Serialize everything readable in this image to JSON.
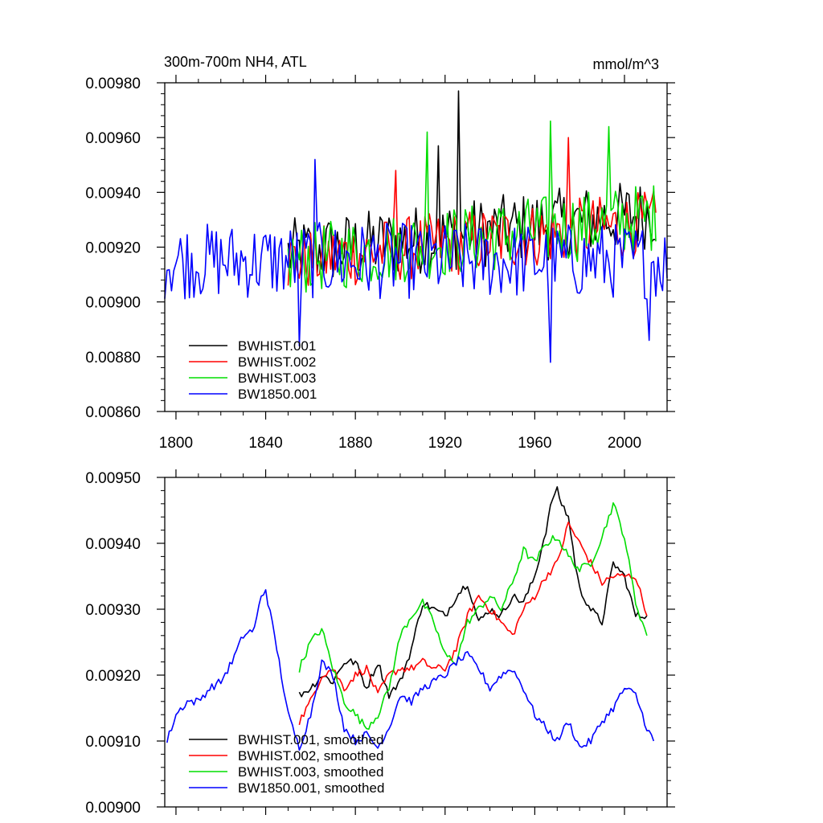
{
  "chart_data": [
    {
      "type": "line",
      "title_left": "300m-700m NH4, ATL",
      "title_right": "mmol/m^3",
      "xlabel": "",
      "ylabel": "",
      "xlim": [
        1795,
        2019
      ],
      "ylim": [
        0.0086,
        0.0098
      ],
      "xticks": [
        1800,
        1840,
        1880,
        1920,
        1960,
        2000
      ],
      "yticks": [
        0.0086,
        0.0088,
        0.009,
        0.0092,
        0.0094,
        0.0096,
        0.0098
      ],
      "ytick_labels": [
        "0.00860",
        "0.00880",
        "0.00900",
        "0.00920",
        "0.00940",
        "0.00960",
        "0.00980"
      ],
      "legend_position": "bottom-left",
      "series": [
        {
          "name": "BWHIST.001",
          "color": "#000000",
          "x_start": 1850,
          "x_end": 2014,
          "mean": 0.00925,
          "amp": 0.00013,
          "trend": 0.00015,
          "spikes": [
            [
              1926,
              0.00977
            ],
            [
              1917,
              0.00957
            ]
          ]
        },
        {
          "name": "BWHIST.002",
          "color": "#ff0000",
          "x_start": 1850,
          "x_end": 2014,
          "mean": 0.00922,
          "amp": 0.00012,
          "trend": 0.00014,
          "spikes": [
            [
              1898,
              0.00948
            ],
            [
              1975,
              0.0096
            ]
          ]
        },
        {
          "name": "BWHIST.003",
          "color": "#00dd00",
          "x_start": 1850,
          "x_end": 2014,
          "mean": 0.00923,
          "amp": 0.00013,
          "trend": 0.00016,
          "spikes": [
            [
              1912,
              0.00962
            ],
            [
              1967,
              0.00966
            ],
            [
              1993,
              0.00964
            ]
          ]
        },
        {
          "name": "BW1850.001",
          "color": "#0000ff",
          "x_start": 1795,
          "x_end": 2019,
          "mean": 0.00915,
          "amp": 0.00014,
          "trend": 0.0,
          "spikes": [
            [
              1862,
              0.00952
            ],
            [
              1855,
              0.00884
            ],
            [
              1967,
              0.00878
            ],
            [
              2011,
              0.00886
            ]
          ]
        }
      ]
    },
    {
      "type": "line",
      "xlabel": "",
      "ylabel": "",
      "xlim": [
        1795,
        2019
      ],
      "ylim": [
        0.009,
        0.0095
      ],
      "xticks": [
        1800,
        1840,
        1880,
        1920,
        1960,
        2000
      ],
      "yticks": [
        0.009,
        0.0091,
        0.0092,
        0.0093,
        0.0094,
        0.0095
      ],
      "ytick_labels": [
        "0.00900",
        "0.00910",
        "0.00920",
        "0.00930",
        "0.00940",
        "0.00950"
      ],
      "legend_position": "bottom-left",
      "series": [
        {
          "name": "BWHIST.001, smoothed",
          "color": "#000000",
          "x": [
            1855,
            1860,
            1865,
            1870,
            1875,
            1880,
            1885,
            1890,
            1895,
            1900,
            1905,
            1910,
            1915,
            1920,
            1925,
            1930,
            1935,
            1940,
            1945,
            1950,
            1955,
            1960,
            1965,
            1968,
            1970,
            1972,
            1975,
            1978,
            1980,
            1985,
            1990,
            1995,
            2000,
            2005,
            2010
          ],
          "y": [
            0.00917,
            0.00918,
            0.0092,
            0.00919,
            0.00922,
            0.00922,
            0.00918,
            0.00922,
            0.00917,
            0.00919,
            0.00924,
            0.00931,
            0.0093,
            0.00929,
            0.00932,
            0.00934,
            0.00928,
            0.0093,
            0.00929,
            0.00932,
            0.00931,
            0.00935,
            0.00942,
            0.00947,
            0.00948,
            0.00946,
            0.00944,
            0.00937,
            0.00933,
            0.0093,
            0.00928,
            0.00937,
            0.00935,
            0.00929,
            0.00929
          ]
        },
        {
          "name": "BWHIST.002, smoothed",
          "color": "#ff0000",
          "x": [
            1855,
            1860,
            1865,
            1870,
            1875,
            1880,
            1885,
            1890,
            1895,
            1900,
            1905,
            1910,
            1915,
            1920,
            1925,
            1930,
            1935,
            1940,
            1945,
            1950,
            1955,
            1960,
            1965,
            1970,
            1975,
            1980,
            1985,
            1990,
            1995,
            2000,
            2005,
            2010
          ],
          "y": [
            0.00913,
            0.00916,
            0.0092,
            0.00921,
            0.00918,
            0.0092,
            0.00921,
            0.00917,
            0.0092,
            0.00921,
            0.00921,
            0.00922,
            0.00921,
            0.00921,
            0.00924,
            0.00929,
            0.00932,
            0.0093,
            0.00928,
            0.00926,
            0.0093,
            0.00932,
            0.00935,
            0.00937,
            0.00943,
            0.0094,
            0.00937,
            0.00934,
            0.00935,
            0.00935,
            0.00935,
            0.00929
          ]
        },
        {
          "name": "BWHIST.003, smoothed",
          "color": "#00dd00",
          "x": [
            1855,
            1860,
            1865,
            1870,
            1875,
            1880,
            1885,
            1890,
            1895,
            1900,
            1905,
            1910,
            1915,
            1920,
            1925,
            1930,
            1935,
            1940,
            1945,
            1950,
            1955,
            1960,
            1965,
            1970,
            1975,
            1980,
            1985,
            1990,
            1995,
            2000,
            2005,
            2010
          ],
          "y": [
            0.00921,
            0.00925,
            0.00927,
            0.00921,
            0.00916,
            0.00914,
            0.00912,
            0.00914,
            0.00918,
            0.00926,
            0.00929,
            0.00931,
            0.00928,
            0.00923,
            0.00922,
            0.00928,
            0.0093,
            0.00932,
            0.0093,
            0.00934,
            0.00939,
            0.00937,
            0.0094,
            0.00941,
            0.00938,
            0.00936,
            0.00937,
            0.00941,
            0.00946,
            0.00941,
            0.00931,
            0.00926
          ]
        },
        {
          "name": "BW1850.001, smoothed",
          "color": "#0000ff",
          "x": [
            1796,
            1800,
            1805,
            1810,
            1815,
            1820,
            1825,
            1830,
            1835,
            1838,
            1840,
            1845,
            1850,
            1855,
            1860,
            1865,
            1870,
            1875,
            1880,
            1885,
            1890,
            1895,
            1900,
            1905,
            1910,
            1915,
            1920,
            1925,
            1930,
            1935,
            1940,
            1945,
            1950,
            1955,
            1960,
            1965,
            1970,
            1975,
            1980,
            1985,
            1990,
            1995,
            2000,
            2005,
            2010,
            2013
          ],
          "y": [
            0.0091,
            0.00914,
            0.00916,
            0.00916,
            0.00918,
            0.00919,
            0.00922,
            0.00926,
            0.00927,
            0.00932,
            0.00933,
            0.00924,
            0.00914,
            0.00909,
            0.00914,
            0.00922,
            0.0092,
            0.00912,
            0.0091,
            0.00911,
            0.00909,
            0.00912,
            0.00917,
            0.00916,
            0.00918,
            0.00919,
            0.0092,
            0.00922,
            0.00923,
            0.00921,
            0.00918,
            0.0092,
            0.00921,
            0.00918,
            0.00914,
            0.00912,
            0.0091,
            0.00913,
            0.00909,
            0.0091,
            0.00913,
            0.00915,
            0.00918,
            0.00917,
            0.00912,
            0.0091
          ]
        }
      ]
    }
  ]
}
